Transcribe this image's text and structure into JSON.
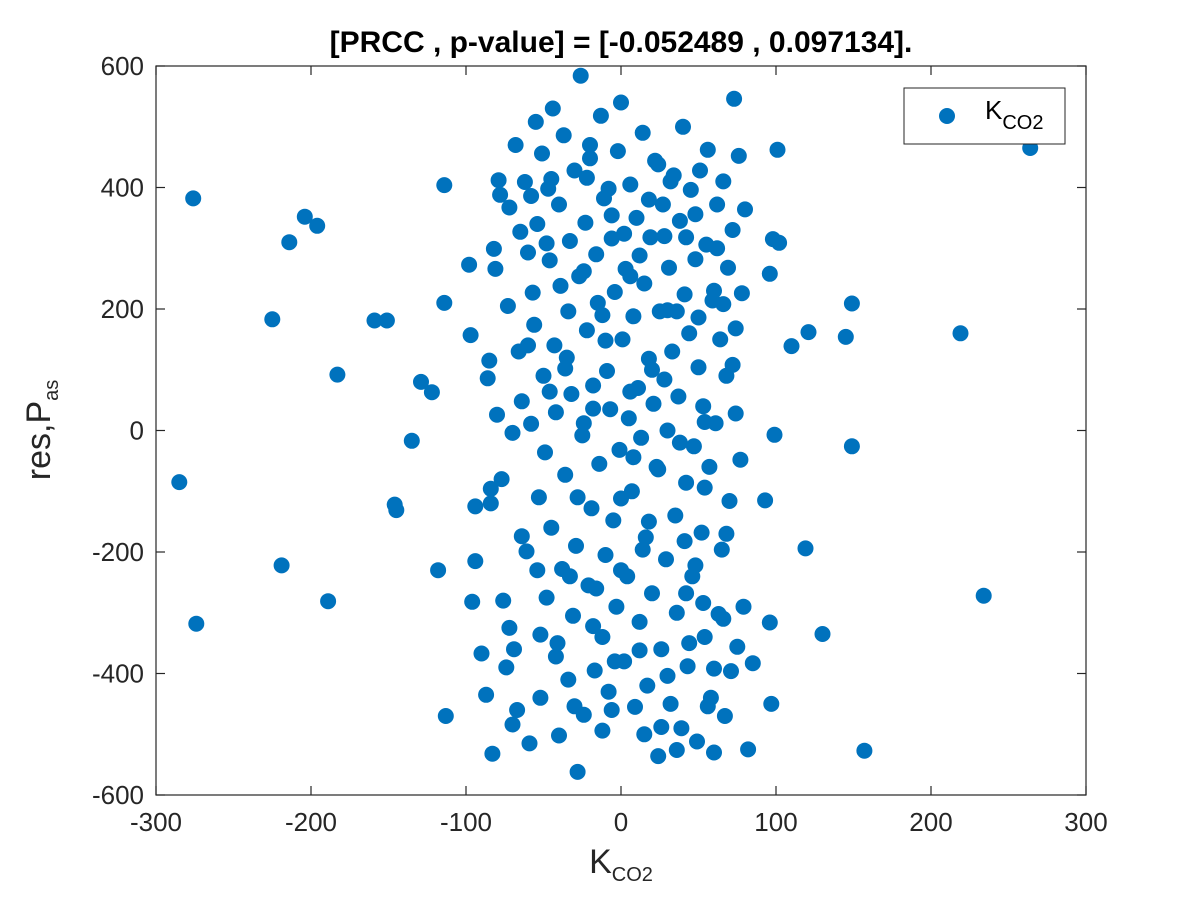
{
  "chart_data": {
    "type": "scatter",
    "title": "[PRCC , p-value] = [-0.052489 , 0.097134].",
    "xlabel": {
      "main": "K",
      "sub": "CO2"
    },
    "ylabel": {
      "main": "res,P",
      "sub": "as"
    },
    "xlim": [
      -300,
      300
    ],
    "ylim": [
      -600,
      600
    ],
    "xticks": [
      -300,
      -200,
      -100,
      0,
      100,
      200,
      300
    ],
    "yticks": [
      -600,
      -400,
      -200,
      0,
      200,
      400,
      600
    ],
    "xtick_labels": [
      "-300",
      "-200",
      "-100",
      "0",
      "100",
      "200",
      "300"
    ],
    "ytick_labels": [
      "-600",
      "-400",
      "-200",
      "0",
      "200",
      "400",
      "600"
    ],
    "grid": false,
    "box": true,
    "legend": {
      "position": "top-right",
      "entries": [
        {
          "main": "K",
          "sub": "CO2"
        }
      ]
    },
    "series": [
      {
        "color": "#0072BD",
        "marker": "filled-circle",
        "points": [
          [
            -285,
            -85
          ],
          [
            -276,
            382
          ],
          [
            -274,
            -318
          ],
          [
            -225,
            183
          ],
          [
            -219,
            -222
          ],
          [
            -214,
            310
          ],
          [
            -204,
            352
          ],
          [
            -196,
            337
          ],
          [
            -189,
            -281
          ],
          [
            -183,
            92
          ],
          [
            -159,
            181
          ],
          [
            -151,
            181
          ],
          [
            -146,
            -122
          ],
          [
            -145,
            -131
          ],
          [
            -135,
            -17
          ],
          [
            -129,
            80
          ],
          [
            -122,
            63
          ],
          [
            -118,
            -230
          ],
          [
            -114,
            404
          ],
          [
            -114,
            210
          ],
          [
            -113,
            -470
          ],
          [
            -98,
            273
          ],
          [
            -97,
            157
          ],
          [
            -96,
            -282
          ],
          [
            -94,
            -125
          ],
          [
            -94,
            -215
          ],
          [
            -90,
            -367
          ],
          [
            -87,
            -435
          ],
          [
            -86,
            86
          ],
          [
            -85,
            115
          ],
          [
            -84,
            -96
          ],
          [
            -84,
            -120
          ],
          [
            -83,
            -532
          ],
          [
            -82,
            299
          ],
          [
            -81,
            266
          ],
          [
            -80,
            26
          ],
          [
            -79,
            412
          ],
          [
            -78,
            388
          ],
          [
            -77,
            -80
          ],
          [
            -76,
            -280
          ],
          [
            -74,
            -390
          ],
          [
            -73,
            205
          ],
          [
            -72,
            -325
          ],
          [
            -72,
            367
          ],
          [
            -70,
            -484
          ],
          [
            -69,
            -360
          ],
          [
            -68,
            470
          ],
          [
            -67,
            -460
          ],
          [
            -66,
            130
          ],
          [
            -65,
            327
          ],
          [
            -64,
            48
          ],
          [
            -62,
            409
          ],
          [
            -61,
            -199
          ],
          [
            -60,
            293
          ],
          [
            -59,
            -515
          ],
          [
            -58,
            11
          ],
          [
            -57,
            227
          ],
          [
            -56,
            174
          ],
          [
            -55,
            508
          ],
          [
            -54,
            340
          ],
          [
            -53,
            -110
          ],
          [
            -52,
            -440
          ],
          [
            -51,
            456
          ],
          [
            -50,
            90
          ],
          [
            -49,
            -36
          ],
          [
            -48,
            -275
          ],
          [
            -47,
            398
          ],
          [
            -46,
            280
          ],
          [
            -45,
            -160
          ],
          [
            -44,
            530
          ],
          [
            -43,
            140
          ],
          [
            -42,
            30
          ],
          [
            -41,
            -350
          ],
          [
            -40,
            372
          ],
          [
            -39,
            238
          ],
          [
            -38,
            -228
          ],
          [
            -37,
            486
          ],
          [
            -36,
            -73
          ],
          [
            -35,
            120
          ],
          [
            -34,
            -410
          ],
          [
            -33,
            312
          ],
          [
            -32,
            60
          ],
          [
            -31,
            -305
          ],
          [
            -30,
            428
          ],
          [
            -29,
            -190
          ],
          [
            -28,
            -562
          ],
          [
            -27,
            254
          ],
          [
            -26,
            584
          ],
          [
            -25,
            -8
          ],
          [
            -24,
            -468
          ],
          [
            -23,
            342
          ],
          [
            -22,
            165
          ],
          [
            -21,
            -255
          ],
          [
            -20,
            448
          ],
          [
            -19,
            -128
          ],
          [
            -18,
            74
          ],
          [
            -17,
            -395
          ],
          [
            -16,
            290
          ],
          [
            -15,
            210
          ],
          [
            -14,
            -55
          ],
          [
            -13,
            518
          ],
          [
            -12,
            -340
          ],
          [
            -11,
            382
          ],
          [
            -10,
            -205
          ],
          [
            -9,
            98
          ],
          [
            -8,
            -430
          ],
          [
            -7,
            35
          ],
          [
            -6,
            316
          ],
          [
            -5,
            -148
          ],
          [
            -4,
            228
          ],
          [
            -3,
            -290
          ],
          [
            -2,
            460
          ],
          [
            -1,
            -32
          ],
          [
            0,
            540
          ],
          [
            1,
            150
          ],
          [
            2,
            -380
          ],
          [
            3,
            266
          ],
          [
            4,
            -240
          ],
          [
            5,
            20
          ],
          [
            6,
            405
          ],
          [
            7,
            -100
          ],
          [
            8,
            188
          ],
          [
            9,
            -455
          ],
          [
            10,
            350
          ],
          [
            11,
            70
          ],
          [
            12,
            -315
          ],
          [
            13,
            -12
          ],
          [
            14,
            490
          ],
          [
            15,
            242
          ],
          [
            16,
            -176
          ],
          [
            17,
            -420
          ],
          [
            18,
            118
          ],
          [
            19,
            318
          ],
          [
            20,
            -268
          ],
          [
            21,
            44
          ],
          [
            22,
            444
          ],
          [
            23,
            -60
          ],
          [
            24,
            -536
          ],
          [
            25,
            196
          ],
          [
            26,
            -360
          ],
          [
            27,
            372
          ],
          [
            28,
            84
          ],
          [
            29,
            -212
          ],
          [
            30,
            0
          ],
          [
            31,
            268
          ],
          [
            32,
            -450
          ],
          [
            33,
            130
          ],
          [
            34,
            420
          ],
          [
            35,
            -140
          ],
          [
            36,
            -300
          ],
          [
            37,
            56
          ],
          [
            38,
            345
          ],
          [
            39,
            -490
          ],
          [
            40,
            500
          ],
          [
            41,
            224
          ],
          [
            42,
            -86
          ],
          [
            43,
            -388
          ],
          [
            44,
            160
          ],
          [
            45,
            396
          ],
          [
            46,
            -240
          ],
          [
            47,
            -26
          ],
          [
            48,
            282
          ],
          [
            49,
            -512
          ],
          [
            50,
            104
          ],
          [
            51,
            428
          ],
          [
            52,
            -168
          ],
          [
            53,
            40
          ],
          [
            54,
            -340
          ],
          [
            55,
            306
          ],
          [
            56,
            462
          ],
          [
            57,
            -60
          ],
          [
            58,
            -440
          ],
          [
            59,
            214
          ],
          [
            60,
            -530
          ],
          [
            61,
            12
          ],
          [
            62,
            372
          ],
          [
            63,
            -302
          ],
          [
            64,
            150
          ],
          [
            65,
            -196
          ],
          [
            66,
            410
          ],
          [
            67,
            -470
          ],
          [
            68,
            90
          ],
          [
            69,
            268
          ],
          [
            70,
            -116
          ],
          [
            71,
            -396
          ],
          [
            72,
            330
          ],
          [
            73,
            546
          ],
          [
            74,
            168
          ],
          [
            75,
            -356
          ],
          [
            76,
            452
          ],
          [
            77,
            -48
          ],
          [
            78,
            226
          ],
          [
            79,
            -290
          ],
          [
            80,
            364
          ],
          [
            82,
            -525
          ],
          [
            85,
            -383
          ],
          [
            93,
            -115
          ],
          [
            96,
            258
          ],
          [
            96,
            -316
          ],
          [
            97,
            -450
          ],
          [
            98,
            315
          ],
          [
            99,
            -7
          ],
          [
            101,
            462
          ],
          [
            102,
            309
          ],
          [
            110,
            139
          ],
          [
            119,
            -194
          ],
          [
            121,
            162
          ],
          [
            130,
            -335
          ],
          [
            145,
            154
          ],
          [
            149,
            -26
          ],
          [
            149,
            209
          ],
          [
            157,
            -527
          ],
          [
            219,
            160
          ],
          [
            234,
            -272
          ],
          [
            264,
            465
          ],
          [
            -24,
            12
          ],
          [
            -18,
            -322
          ],
          [
            -12,
            190
          ],
          [
            -6,
            -460
          ],
          [
            0,
            -230
          ],
          [
            6,
            64
          ],
          [
            12,
            288
          ],
          [
            18,
            -150
          ],
          [
            24,
            438
          ],
          [
            30,
            -404
          ],
          [
            36,
            196
          ],
          [
            42,
            -268
          ],
          [
            48,
            356
          ],
          [
            54,
            -94
          ],
          [
            60,
            230
          ],
          [
            66,
            -310
          ],
          [
            72,
            108
          ],
          [
            -70,
            -4
          ],
          [
            -64,
            -174
          ],
          [
            -58,
            386
          ],
          [
            -52,
            -336
          ],
          [
            -46,
            64
          ],
          [
            -40,
            -502
          ],
          [
            -34,
            196
          ],
          [
            -28,
            -110
          ],
          [
            -22,
            416
          ],
          [
            -16,
            -260
          ],
          [
            -10,
            148
          ],
          [
            -4,
            -380
          ],
          [
            2,
            324
          ],
          [
            8,
            -44
          ],
          [
            14,
            -196
          ],
          [
            20,
            100
          ],
          [
            26,
            -488
          ],
          [
            32,
            410
          ],
          [
            38,
            -20
          ],
          [
            44,
            -350
          ],
          [
            50,
            186
          ],
          [
            56,
            -454
          ],
          [
            62,
            300
          ],
          [
            68,
            -170
          ],
          [
            74,
            28
          ],
          [
            -60,
            140
          ],
          [
            -54,
            -230
          ],
          [
            -48,
            308
          ],
          [
            -42,
            -372
          ],
          [
            -36,
            102
          ],
          [
            -30,
            -454
          ],
          [
            -24,
            262
          ],
          [
            -18,
            36
          ],
          [
            -12,
            -494
          ],
          [
            -6,
            354
          ],
          [
            0,
            -112
          ],
          [
            6,
            254
          ],
          [
            12,
            -362
          ],
          [
            18,
            380
          ],
          [
            24,
            -64
          ],
          [
            30,
            198
          ],
          [
            36,
            -526
          ],
          [
            42,
            318
          ],
          [
            48,
            -222
          ],
          [
            54,
            14
          ],
          [
            60,
            -392
          ],
          [
            66,
            208
          ],
          [
            -20,
            470
          ],
          [
            15,
            -500
          ],
          [
            -8,
            398
          ],
          [
            28,
            320
          ],
          [
            -33,
            -240
          ],
          [
            41,
            -182
          ],
          [
            -45,
            414
          ],
          [
            53,
            -284
          ]
        ]
      }
    ]
  }
}
